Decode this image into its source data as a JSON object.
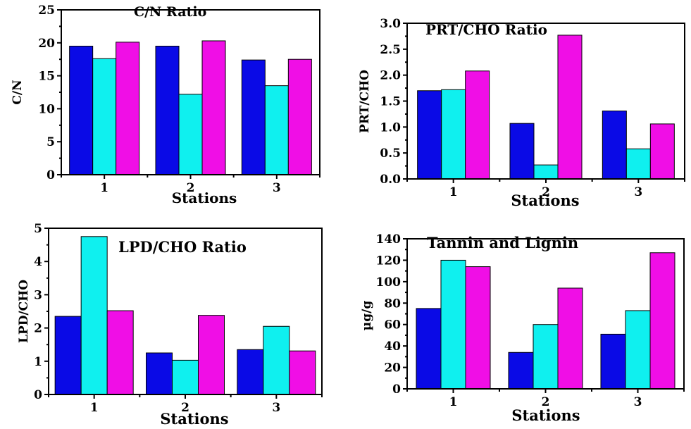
{
  "colors": {
    "series1": "#0a0ae6",
    "series2": "#0ff0ef",
    "series3": "#f00ee6"
  },
  "chart_data": [
    {
      "type": "bar",
      "title": "C/N Ratio",
      "xlabel": "Stations",
      "ylabel": "C/N",
      "categories": [
        "1",
        "2",
        "3"
      ],
      "ylim": [
        0,
        25
      ],
      "yticks": [
        "0",
        "5",
        "10",
        "15",
        "20",
        "25"
      ],
      "series": [
        {
          "values": [
            19.5,
            19.5,
            17.4
          ]
        },
        {
          "values": [
            17.6,
            12.2,
            13.5
          ]
        },
        {
          "values": [
            20.1,
            20.3,
            17.5
          ]
        }
      ]
    },
    {
      "type": "bar",
      "title": "PRT/CHO Ratio",
      "xlabel": "Stations",
      "ylabel": "PRT/CHO",
      "categories": [
        "1",
        "2",
        "3"
      ],
      "ylim": [
        0,
        3.0
      ],
      "yticks": [
        "0.0",
        "0.5",
        "1.0",
        "1.5",
        "2.0",
        "2.5",
        "3.0"
      ],
      "series": [
        {
          "values": [
            1.7,
            1.07,
            1.31
          ]
        },
        {
          "values": [
            1.72,
            0.27,
            0.58
          ]
        },
        {
          "values": [
            2.08,
            2.77,
            1.06
          ]
        }
      ]
    },
    {
      "type": "bar",
      "title": "LPD/CHO Ratio",
      "xlabel": "Stations",
      "ylabel": "LPD/CHO",
      "categories": [
        "1",
        "2",
        "3"
      ],
      "ylim": [
        0,
        5
      ],
      "yticks": [
        "0",
        "1",
        "2",
        "3",
        "4",
        "5"
      ],
      "series": [
        {
          "values": [
            2.35,
            1.25,
            1.35
          ]
        },
        {
          "values": [
            4.75,
            1.03,
            2.05
          ]
        },
        {
          "values": [
            2.52,
            2.38,
            1.31
          ]
        }
      ]
    },
    {
      "type": "bar",
      "title": "Tannin and Lignin",
      "xlabel": "Stations",
      "ylabel": "µg/g",
      "categories": [
        "1",
        "2",
        "3"
      ],
      "ylim": [
        0,
        140
      ],
      "yticks": [
        "0",
        "20",
        "40",
        "60",
        "80",
        "100",
        "120",
        "140"
      ],
      "series": [
        {
          "values": [
            75,
            34,
            51
          ]
        },
        {
          "values": [
            120,
            60,
            73
          ]
        },
        {
          "values": [
            114,
            94,
            127
          ]
        }
      ]
    }
  ]
}
